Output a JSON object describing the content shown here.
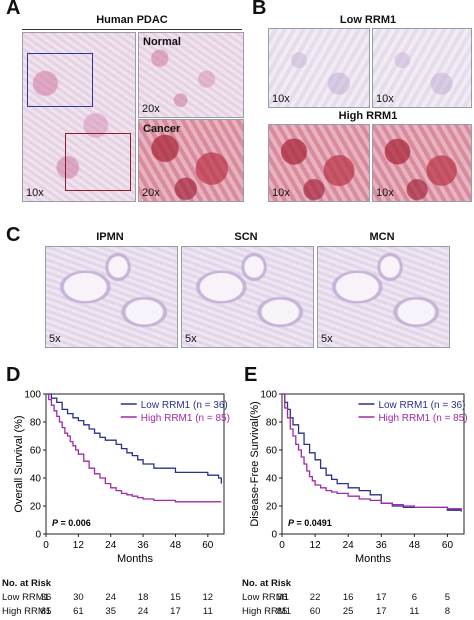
{
  "panels": {
    "A": {
      "letter": "A",
      "title": "Human PDAC",
      "normal": "Normal",
      "cancer": "Cancer",
      "mag_main": "10x",
      "mag_zoom": "20x"
    },
    "B": {
      "letter": "B",
      "low": "Low RRM1",
      "high": "High RRM1",
      "mag": "10x"
    },
    "C": {
      "letter": "C",
      "titles": [
        "IPMN",
        "SCN",
        "MCN"
      ],
      "mag": "5x"
    },
    "D": {
      "letter": "D"
    },
    "E": {
      "letter": "E"
    }
  },
  "chart_data": [
    {
      "type": "line",
      "ylabel": "Overall Survival (%)",
      "xlabel": "Months",
      "xlim": [
        0,
        66
      ],
      "ylim": [
        0,
        100
      ],
      "xticks": [
        0,
        12,
        24,
        36,
        48,
        60
      ],
      "yticks": [
        0,
        20,
        40,
        60,
        80,
        100
      ],
      "pvalue": "P = 0.006",
      "legend_position": "top-right",
      "series": [
        {
          "name": "Low RRM1 (n = 36)",
          "color": "#2b2f8f",
          "points": [
            [
              0,
              100
            ],
            [
              2,
              97
            ],
            [
              4,
              94
            ],
            [
              6,
              89
            ],
            [
              8,
              86
            ],
            [
              10,
              83
            ],
            [
              12,
              81
            ],
            [
              14,
              78
            ],
            [
              16,
              75
            ],
            [
              18,
              72
            ],
            [
              20,
              69
            ],
            [
              22,
              67
            ],
            [
              24,
              67
            ],
            [
              26,
              64
            ],
            [
              28,
              61
            ],
            [
              30,
              58
            ],
            [
              32,
              56
            ],
            [
              34,
              53
            ],
            [
              36,
              50
            ],
            [
              40,
              47
            ],
            [
              44,
              47
            ],
            [
              48,
              44
            ],
            [
              56,
              44
            ],
            [
              60,
              42
            ],
            [
              64,
              40
            ],
            [
              65,
              36
            ]
          ]
        },
        {
          "name": "High RRM1 (n = 85)",
          "color": "#a12aa8",
          "points": [
            [
              0,
              100
            ],
            [
              1,
              96
            ],
            [
              2,
              92
            ],
            [
              3,
              88
            ],
            [
              4,
              84
            ],
            [
              5,
              80
            ],
            [
              6,
              76
            ],
            [
              7,
              72
            ],
            [
              8,
              70
            ],
            [
              9,
              66
            ],
            [
              10,
              63
            ],
            [
              11,
              60
            ],
            [
              12,
              57
            ],
            [
              14,
              52
            ],
            [
              16,
              47
            ],
            [
              18,
              43
            ],
            [
              20,
              40
            ],
            [
              22,
              36
            ],
            [
              24,
              33
            ],
            [
              26,
              31
            ],
            [
              28,
              29
            ],
            [
              30,
              28
            ],
            [
              32,
              27
            ],
            [
              34,
              26
            ],
            [
              36,
              25
            ],
            [
              40,
              24
            ],
            [
              44,
              24
            ],
            [
              48,
              23
            ],
            [
              56,
              23
            ],
            [
              65,
              23
            ]
          ]
        }
      ],
      "risk_table": {
        "title": "No. at Risk",
        "rows": [
          {
            "label": "Low RRM1",
            "values": [
              "36",
              "30",
              "24",
              "18",
              "15",
              "12"
            ]
          },
          {
            "label": "High RRM1",
            "values": [
              "85",
              "61",
              "35",
              "24",
              "17",
              "11"
            ]
          }
        ]
      }
    },
    {
      "type": "line",
      "ylabel": "Disease-Free Survival(%)",
      "xlabel": "Months",
      "xlim": [
        0,
        66
      ],
      "ylim": [
        0,
        100
      ],
      "xticks": [
        0,
        12,
        24,
        36,
        48,
        60
      ],
      "yticks": [
        0,
        20,
        40,
        60,
        80,
        100
      ],
      "pvalue": "P = 0.0491",
      "legend_position": "top-right",
      "series": [
        {
          "name": "Low RRM1 (n = 36)",
          "color": "#2b2f8f",
          "points": [
            [
              0,
              100
            ],
            [
              1,
              94
            ],
            [
              2,
              89
            ],
            [
              3,
              83
            ],
            [
              4,
              78
            ],
            [
              6,
              72
            ],
            [
              8,
              64
            ],
            [
              10,
              58
            ],
            [
              12,
              53
            ],
            [
              14,
              47
            ],
            [
              16,
              42
            ],
            [
              18,
              39
            ],
            [
              20,
              36
            ],
            [
              24,
              33
            ],
            [
              28,
              31
            ],
            [
              32,
              28
            ],
            [
              36,
              22
            ],
            [
              40,
              20
            ],
            [
              44,
              19
            ],
            [
              48,
              19
            ],
            [
              56,
              19
            ],
            [
              60,
              17
            ],
            [
              65,
              16
            ]
          ]
        },
        {
          "name": "High RRM1 (n = 85)",
          "color": "#a12aa8",
          "points": [
            [
              0,
              100
            ],
            [
              1,
              90
            ],
            [
              2,
              83
            ],
            [
              3,
              75
            ],
            [
              4,
              70
            ],
            [
              5,
              64
            ],
            [
              6,
              60
            ],
            [
              7,
              55
            ],
            [
              8,
              50
            ],
            [
              9,
              45
            ],
            [
              10,
              41
            ],
            [
              11,
              38
            ],
            [
              12,
              35
            ],
            [
              14,
              33
            ],
            [
              16,
              31
            ],
            [
              18,
              30
            ],
            [
              20,
              29
            ],
            [
              24,
              27
            ],
            [
              28,
              25
            ],
            [
              32,
              24
            ],
            [
              36,
              22
            ],
            [
              40,
              21
            ],
            [
              44,
              20
            ],
            [
              48,
              19
            ],
            [
              56,
              19
            ],
            [
              60,
              18
            ],
            [
              65,
              17
            ]
          ]
        }
      ],
      "risk_table": {
        "title": "No. at Risk",
        "rows": [
          {
            "label": "Low RRM1",
            "values": [
              "36",
              "22",
              "16",
              "17",
              "6",
              "5"
            ]
          },
          {
            "label": "High RRM1",
            "values": [
              "85",
              "60",
              "25",
              "17",
              "11",
              "8"
            ]
          }
        ]
      }
    }
  ]
}
